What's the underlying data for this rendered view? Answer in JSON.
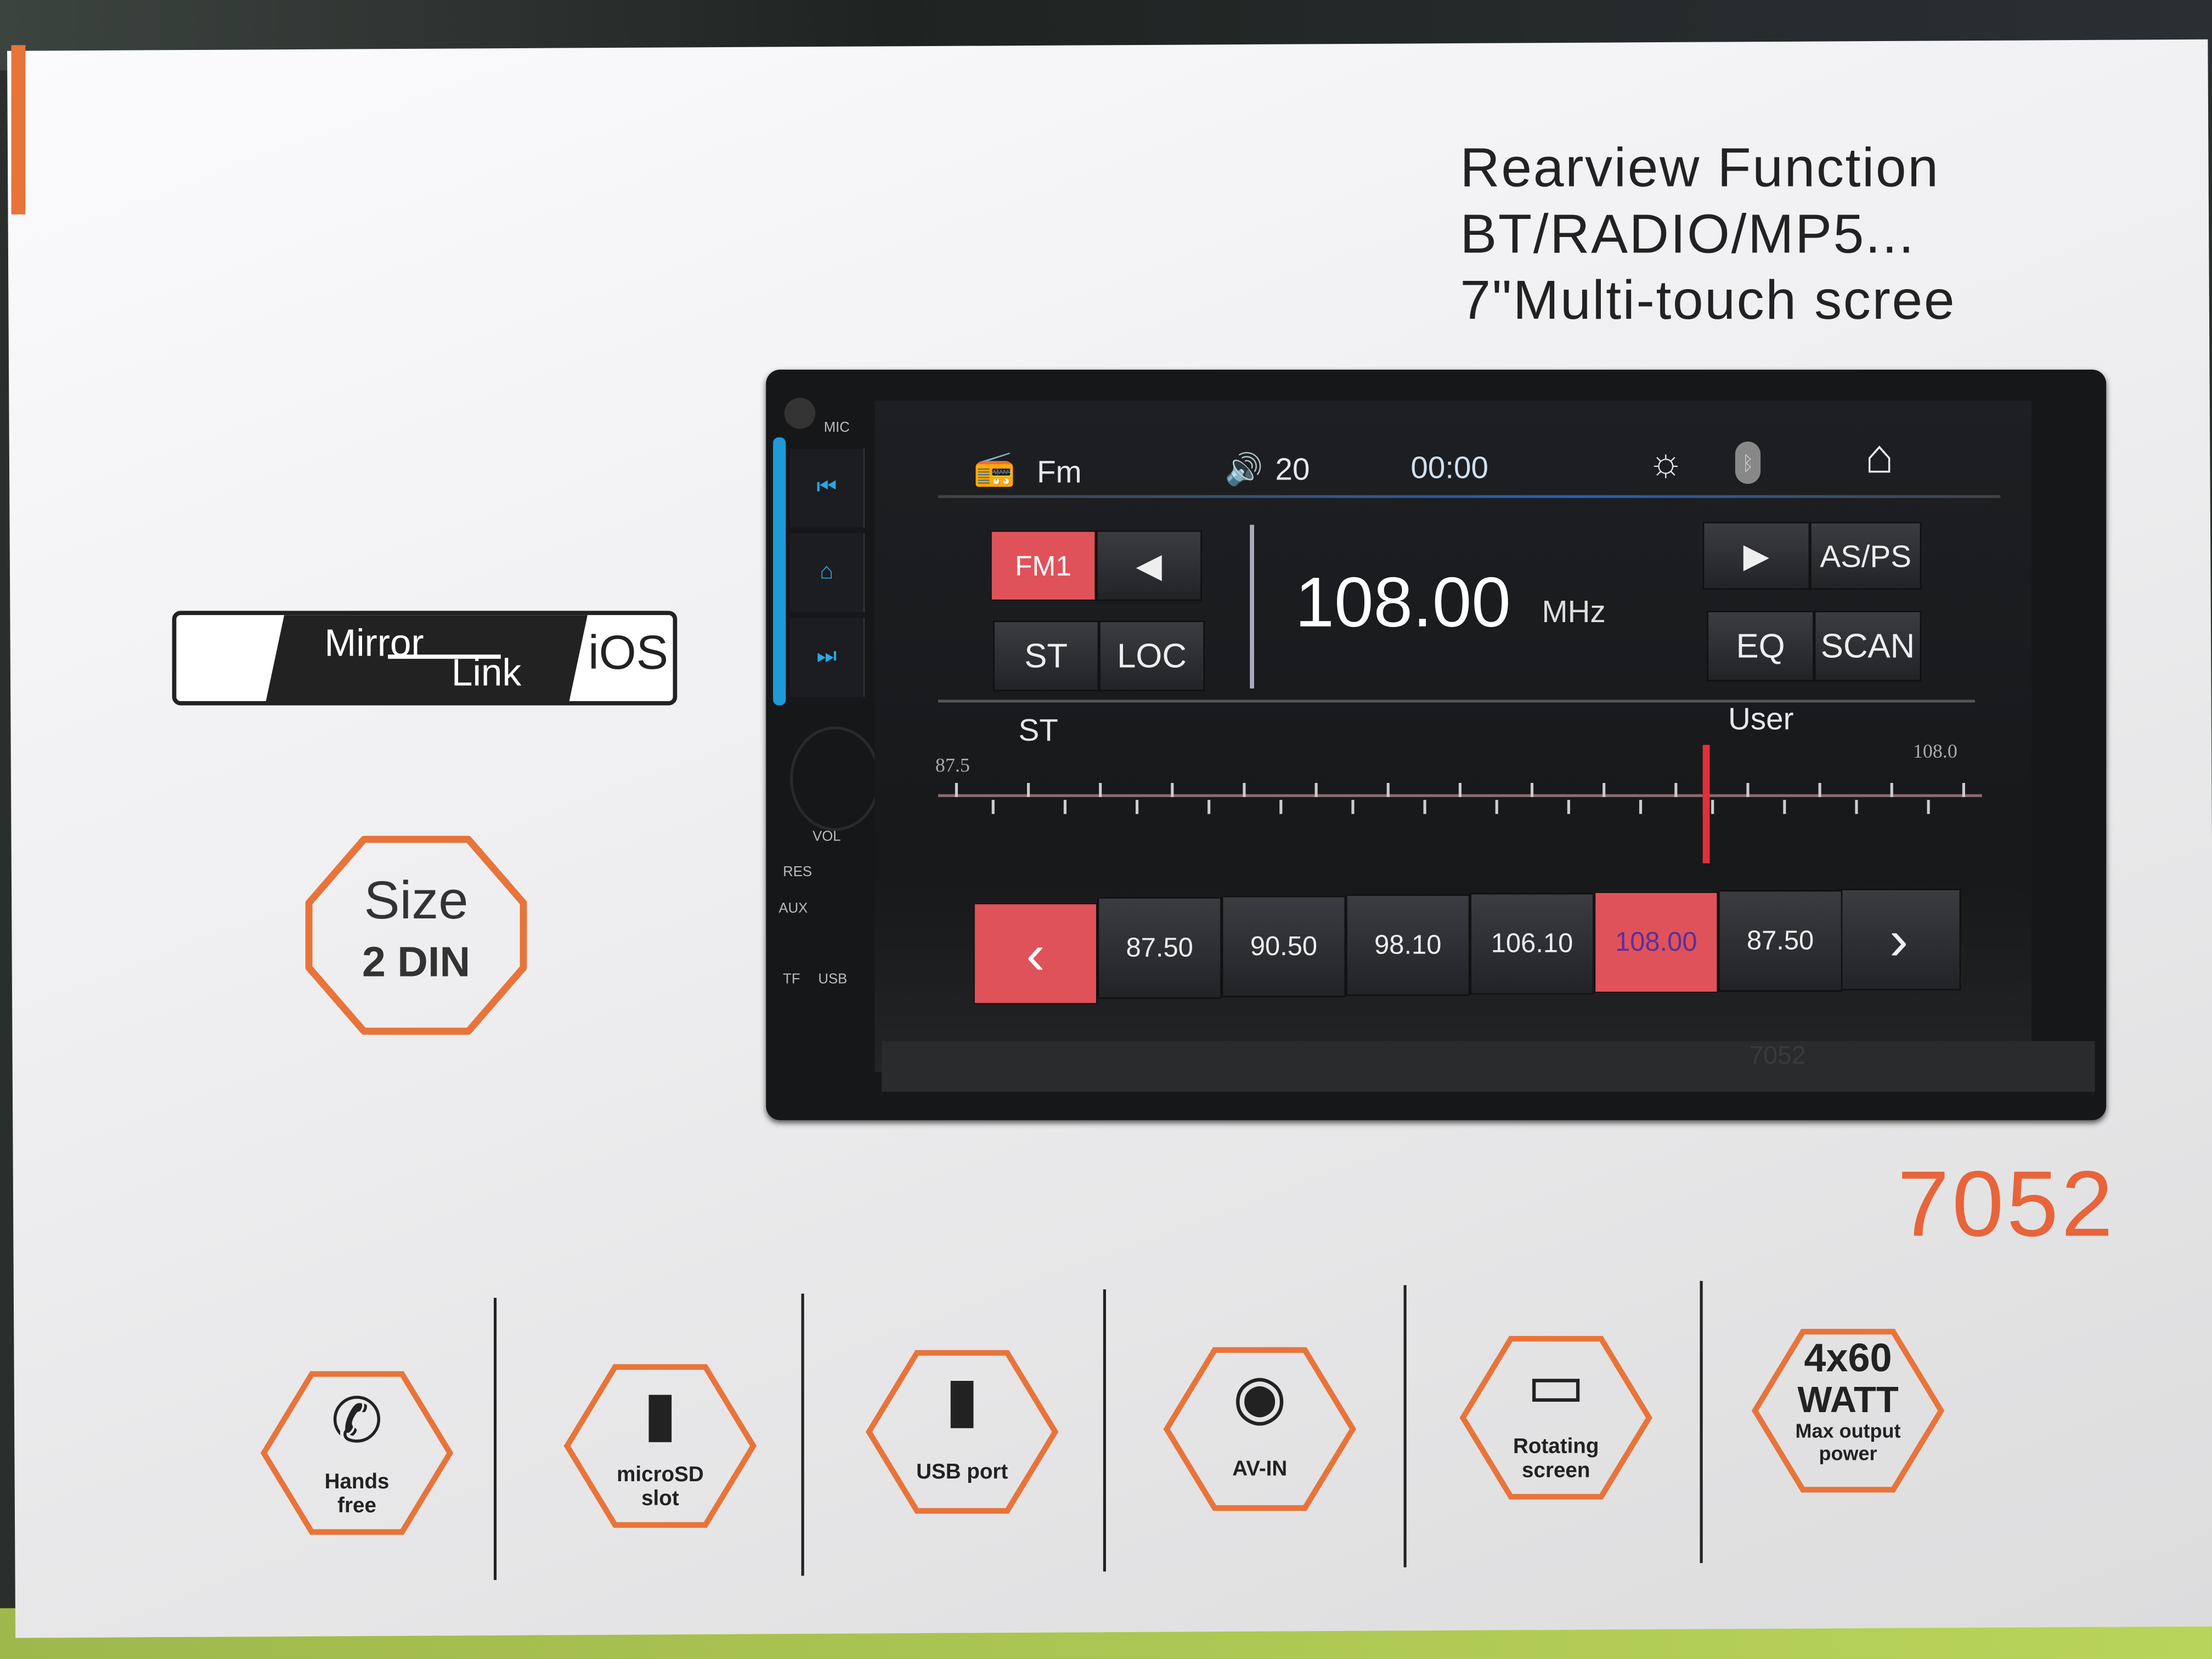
{
  "box": {
    "features_heading": [
      "Rearview Function",
      "BT/RADIO/MP5...",
      "7\"Multi-touch scree"
    ],
    "model_number": "7052",
    "mirrorlink_badge": {
      "mirror": "Mirror",
      "link": "Link",
      "ios": "iOS"
    },
    "size_badge": {
      "size": "Size",
      "din": "2 DIN"
    },
    "accent_color": "#e8743a",
    "features": [
      {
        "icon": "phone-icon",
        "label": [
          "Hands",
          "free"
        ]
      },
      {
        "icon": "microsd-icon",
        "label": [
          "microSD",
          "slot"
        ]
      },
      {
        "icon": "usb-icon",
        "label": [
          "USB port"
        ]
      },
      {
        "icon": "av-in-icon",
        "label": [
          "AV-IN"
        ]
      },
      {
        "icon": "rotating-screen-icon",
        "label": [
          "Rotating",
          "screen"
        ]
      },
      {
        "icon": "power-text",
        "label": [
          "4x60",
          "WATT",
          "Max output",
          "power"
        ]
      }
    ]
  },
  "device": {
    "panel_labels": {
      "mic": "MIC",
      "vol": "VOL",
      "res": "RES",
      "aux": "AUX",
      "tf": "TF",
      "usb": "USB"
    },
    "bezel_model": "7052",
    "status_bar": {
      "source": "Fm",
      "volume": "20",
      "clock": "00:00"
    },
    "buttons": {
      "band": "FM1",
      "st": "ST",
      "loc": "LOC",
      "asps": "AS/PS",
      "eq": "EQ",
      "scan": "SCAN"
    },
    "frequency": {
      "value": "108.00",
      "unit": "MHz"
    },
    "tuner": {
      "mode_left": "ST",
      "mode_right": "User",
      "min_label": "87.5",
      "max_label": "108.0",
      "min": 87.5,
      "max": 108.0,
      "current": 108.0
    },
    "presets": [
      "87.50",
      "90.50",
      "98.10",
      "106.10",
      "108.00",
      "87.50"
    ],
    "selected_preset": "108.00",
    "highlight_color": "#e0525a"
  }
}
